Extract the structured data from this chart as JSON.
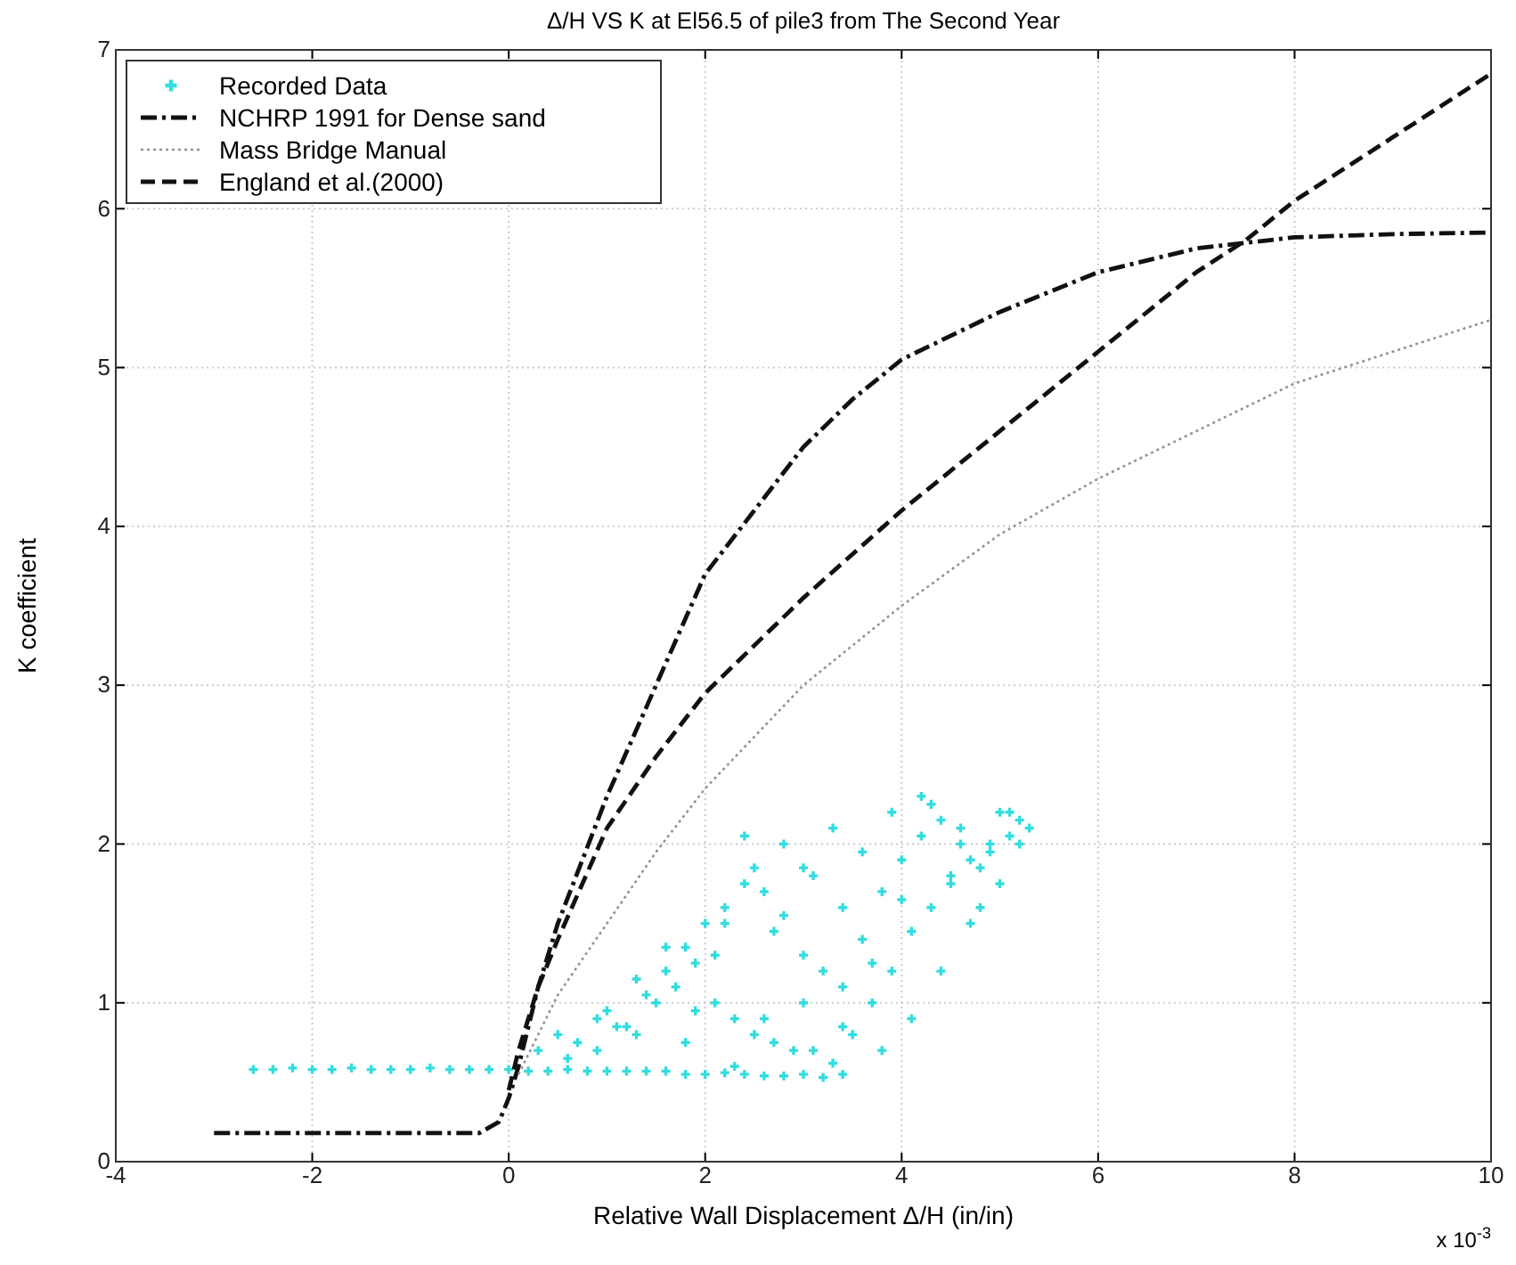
{
  "chart_data": {
    "type": "line",
    "title": "Δ/H VS K at El56.5 of pile3 from The Second Year",
    "xlabel": "Relative Wall Displacement Δ/H (in/in)",
    "ylabel": "K coefficient",
    "annotations": [
      "x 10$^{-3}$"
    ],
    "xlim": [
      -4,
      10
    ],
    "ylim": [
      0,
      7
    ],
    "xticks": [
      -4,
      -2,
      0,
      2,
      4,
      6,
      8,
      10
    ],
    "yticks": [
      0,
      1,
      2,
      3,
      4,
      5,
      6,
      7
    ],
    "grid": true,
    "legend": "top left",
    "series": [
      {
        "name": "Recorded Data",
        "type": "scatter",
        "marker": "cross",
        "color": "#33dddd",
        "x": [
          -2.6,
          -2.4,
          -2.2,
          -2,
          -1.8,
          -1.6,
          -1.4,
          -1.2,
          -1,
          -0.8,
          -0.6,
          -0.4,
          -0.2,
          0,
          0.2,
          0.4,
          0.6,
          0.8,
          1,
          1.2,
          1.4,
          1.6,
          1.8,
          2,
          2.2,
          2.4,
          2.6,
          2.8,
          3,
          3.2,
          3.4,
          0.3,
          0.5,
          0.7,
          0.9,
          1.1,
          1.3,
          1.5,
          1.7,
          1.9,
          2.1,
          2.3,
          2.5,
          2.7,
          2.9,
          3.1,
          3.3,
          3.5,
          3.7,
          3.9,
          4.1,
          4.3,
          4.5,
          4.7,
          4.9,
          5.1,
          5.3,
          0.6,
          0.9,
          1.2,
          1.4,
          1.6,
          1.8,
          2,
          2.2,
          2.4,
          2.6,
          2.8,
          3,
          3.2,
          3.4,
          3.6,
          3.8,
          4,
          4.2,
          4.4,
          4.6,
          4.8,
          5,
          5.2,
          1,
          1.3,
          1.6,
          1.9,
          2.2,
          2.5,
          2.8,
          3.1,
          3.4,
          3.7,
          4,
          4.3,
          4.6,
          4.9,
          1.8,
          2.1,
          2.4,
          2.7,
          3,
          3.3,
          3.6,
          3.9,
          4.2,
          4.5,
          4.8,
          5.1,
          2.3,
          2.6,
          3,
          3.4,
          3.8,
          4.1,
          4.4,
          4.7,
          5,
          5.2
        ],
        "values": [
          0.58,
          0.58,
          0.59,
          0.58,
          0.58,
          0.59,
          0.58,
          0.58,
          0.58,
          0.59,
          0.58,
          0.58,
          0.58,
          0.58,
          0.57,
          0.57,
          0.58,
          0.57,
          0.57,
          0.57,
          0.57,
          0.57,
          0.55,
          0.55,
          0.56,
          0.55,
          0.54,
          0.54,
          0.55,
          0.53,
          0.55,
          0.7,
          0.8,
          0.75,
          0.9,
          0.85,
          0.8,
          1.0,
          1.1,
          0.95,
          1.0,
          0.9,
          0.8,
          0.75,
          0.7,
          0.7,
          0.62,
          0.8,
          1.0,
          1.2,
          1.45,
          1.6,
          1.75,
          1.9,
          2.0,
          2.05,
          2.1,
          0.65,
          0.7,
          0.85,
          1.05,
          1.2,
          1.35,
          1.5,
          1.6,
          1.75,
          1.7,
          1.55,
          1.3,
          1.2,
          1.1,
          1.4,
          1.7,
          1.9,
          2.05,
          2.15,
          2.0,
          1.85,
          2.2,
          2.15,
          0.95,
          1.15,
          1.35,
          1.25,
          1.5,
          1.85,
          2.0,
          1.8,
          1.6,
          1.25,
          1.65,
          2.25,
          2.1,
          1.95,
          0.75,
          1.3,
          2.05,
          1.45,
          1.85,
          2.1,
          1.95,
          2.2,
          2.3,
          1.8,
          1.6,
          2.2,
          0.6,
          0.9,
          1.0,
          0.85,
          0.7,
          0.9,
          1.2,
          1.5,
          1.75,
          2.0
        ]
      },
      {
        "name": "NCHRP 1991 for Dense sand",
        "color": "#111111",
        "line_style": "dashdot",
        "x": [
          -3,
          -1,
          -0.3,
          -0.1,
          0,
          0.1,
          0.3,
          0.5,
          1,
          1.5,
          2,
          2.5,
          3,
          3.5,
          4,
          5,
          6,
          7,
          8,
          9,
          10
        ],
        "values": [
          0.18,
          0.18,
          0.18,
          0.25,
          0.4,
          0.6,
          1.1,
          1.5,
          2.3,
          3.0,
          3.7,
          4.1,
          4.5,
          4.8,
          5.05,
          5.35,
          5.6,
          5.75,
          5.82,
          5.84,
          5.85
        ]
      },
      {
        "name": "Mass Bridge Manual",
        "color": "#999090",
        "line_style": "dotted",
        "x": [
          0.1,
          0.5,
          1,
          1.5,
          2,
          3,
          4,
          5,
          6,
          7,
          8,
          9,
          10
        ],
        "values": [
          0.55,
          1.05,
          1.5,
          1.95,
          2.35,
          3.0,
          3.5,
          3.95,
          4.3,
          4.6,
          4.9,
          5.1,
          5.3
        ]
      },
      {
        "name": "England et al.(2000)",
        "color": "#111111",
        "line_style": "dashed",
        "x": [
          0,
          0.1,
          0.3,
          0.5,
          1,
          1.5,
          2,
          3,
          4,
          5,
          6,
          7,
          7.5,
          8,
          9,
          10
        ],
        "values": [
          0.45,
          0.7,
          1.1,
          1.4,
          2.1,
          2.55,
          2.95,
          3.55,
          4.1,
          4.6,
          5.1,
          5.6,
          5.8,
          6.05,
          6.45,
          6.85
        ]
      }
    ]
  }
}
